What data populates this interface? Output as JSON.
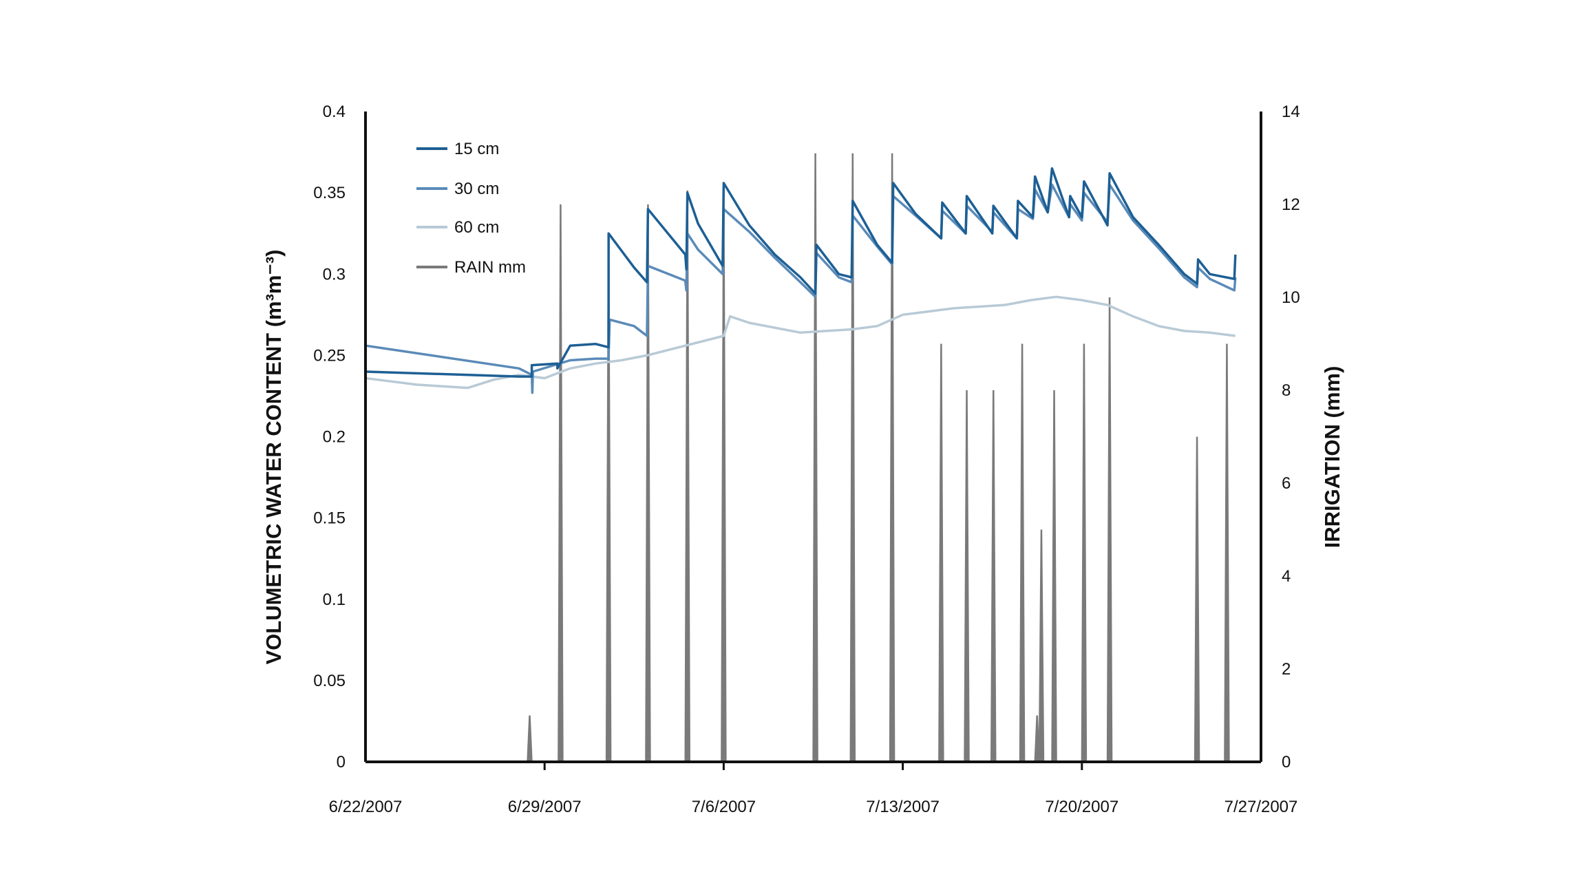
{
  "chart_data": {
    "type": "line",
    "ylabel": "VOLUMETRIC WATER CONTENT (m³m⁻³)",
    "y2label": "IRRIGATION (mm)",
    "ylim": [
      0,
      0.4
    ],
    "y2lim": [
      0,
      14
    ],
    "xlim": [
      "6/22/2007",
      "7/27/2007"
    ],
    "y_ticks": [
      "0",
      "0.05",
      "0.1",
      "0.15",
      "0.2",
      "0.25",
      "0.3",
      "0.35",
      "0.4"
    ],
    "y2_ticks": [
      "0",
      "2",
      "4",
      "6",
      "8",
      "10",
      "12",
      "14"
    ],
    "x_ticks": [
      "6/22/2007",
      "6/29/2007",
      "7/6/2007",
      "7/13/2007",
      "7/20/2007",
      "7/27/2007"
    ],
    "legend_position": "top-left",
    "grid": false,
    "colors": {
      "15 cm": "#1d5f94",
      "30 cm": "#5a8ab8",
      "60 cm": "#b8cad6",
      "RAIN mm": "#7a7a7a"
    },
    "series": [
      {
        "name": "15 cm",
        "axis": "left",
        "points": [
          [
            "6/22/2007",
            0.24
          ],
          [
            "6/28/2007",
            0.237
          ],
          [
            "6/28/2007 12:00",
            0.237
          ],
          [
            "6/28/2007 12:01",
            0.244
          ],
          [
            "6/29/2007 12:00",
            0.245
          ],
          [
            "6/29/2007 12:01",
            0.242
          ],
          [
            "6/30/2007",
            0.256
          ],
          [
            "7/1/2007",
            0.257
          ],
          [
            "7/1/2007 12:00",
            0.255
          ],
          [
            "7/1/2007 12:01",
            0.325
          ],
          [
            "7/2/2007 12:00",
            0.304
          ],
          [
            "7/3/2007",
            0.295
          ],
          [
            "7/3/2007 01:00",
            0.34
          ],
          [
            "7/4/2007 12:00",
            0.312
          ],
          [
            "7/4/2007 13:00",
            0.303
          ],
          [
            "7/4/2007 14:00",
            0.35
          ],
          [
            "7/5/2007",
            0.331
          ],
          [
            "7/5/2007 23:00",
            0.305
          ],
          [
            "7/6/2007",
            0.356
          ],
          [
            "7/7/2007",
            0.33
          ],
          [
            "7/8/2007",
            0.312
          ],
          [
            "7/9/2007",
            0.298
          ],
          [
            "7/9/2007 14:00",
            0.288
          ],
          [
            "7/9/2007 15:00",
            0.318
          ],
          [
            "7/10/2007 12:00",
            0.3
          ],
          [
            "7/11/2007",
            0.298
          ],
          [
            "7/11/2007 01:00",
            0.345
          ],
          [
            "7/12/2007",
            0.318
          ],
          [
            "7/12/2007 14:00",
            0.307
          ],
          [
            "7/12/2007 15:00",
            0.356
          ],
          [
            "7/13/2007 12:00",
            0.337
          ],
          [
            "7/14/2007 12:00",
            0.322
          ],
          [
            "7/14/2007 13:00",
            0.344
          ],
          [
            "7/15/2007 11:00",
            0.325
          ],
          [
            "7/15/2007 12:00",
            0.348
          ],
          [
            "7/16/2007 12:00",
            0.325
          ],
          [
            "7/16/2007 13:00",
            0.342
          ],
          [
            "7/17/2007 11:00",
            0.322
          ],
          [
            "7/17/2007 12:00",
            0.345
          ],
          [
            "7/18/2007 02:00",
            0.335
          ],
          [
            "7/18/2007 04:00",
            0.36
          ],
          [
            "7/18/2007 16:00",
            0.338
          ],
          [
            "7/18/2007 20:00",
            0.365
          ],
          [
            "7/19/2007 12:00",
            0.335
          ],
          [
            "7/19/2007 13:00",
            0.348
          ],
          [
            "7/20/2007",
            0.335
          ],
          [
            "7/20/2007 02:00",
            0.357
          ],
          [
            "7/21/2007",
            0.33
          ],
          [
            "7/21/2007 02:00",
            0.362
          ],
          [
            "7/22/2007",
            0.335
          ],
          [
            "7/23/2007",
            0.318
          ],
          [
            "7/24/2007",
            0.3
          ],
          [
            "7/24/2007 12:00",
            0.294
          ],
          [
            "7/24/2007 13:00",
            0.309
          ],
          [
            "7/25/2007",
            0.3
          ],
          [
            "7/25/2007 23:00",
            0.297
          ],
          [
            "7/26/2007",
            0.312
          ]
        ]
      },
      {
        "name": "30 cm",
        "axis": "left",
        "points": [
          [
            "6/22/2007",
            0.256
          ],
          [
            "6/28/2007",
            0.242
          ],
          [
            "6/28/2007 12:00",
            0.238
          ],
          [
            "6/28/2007 12:30",
            0.227
          ],
          [
            "6/28/2007 13:00",
            0.24
          ],
          [
            "6/30/2007",
            0.247
          ],
          [
            "7/1/2007",
            0.248
          ],
          [
            "7/1/2007 12:00",
            0.248
          ],
          [
            "7/1/2007 13:00",
            0.272
          ],
          [
            "7/2/2007 12:00",
            0.268
          ],
          [
            "7/3/2007",
            0.262
          ],
          [
            "7/3/2007 01:00",
            0.305
          ],
          [
            "7/4/2007 12:00",
            0.296
          ],
          [
            "7/4/2007 13:00",
            0.29
          ],
          [
            "7/4/2007 14:00",
            0.325
          ],
          [
            "7/5/2007",
            0.315
          ],
          [
            "7/5/2007 23:00",
            0.3
          ],
          [
            "7/6/2007",
            0.34
          ],
          [
            "7/7/2007",
            0.326
          ],
          [
            "7/8/2007",
            0.31
          ],
          [
            "7/9/2007",
            0.295
          ],
          [
            "7/9/2007 14:00",
            0.286
          ],
          [
            "7/9/2007 15:00",
            0.313
          ],
          [
            "7/10/2007 12:00",
            0.298
          ],
          [
            "7/11/2007",
            0.295
          ],
          [
            "7/11/2007 01:00",
            0.336
          ],
          [
            "7/12/2007",
            0.317
          ],
          [
            "7/12/2007 14:00",
            0.306
          ],
          [
            "7/12/2007 15:00",
            0.348
          ],
          [
            "7/13/2007 12:00",
            0.336
          ],
          [
            "7/14/2007 12:00",
            0.322
          ],
          [
            "7/14/2007 13:00",
            0.339
          ],
          [
            "7/15/2007 11:00",
            0.325
          ],
          [
            "7/15/2007 12:00",
            0.342
          ],
          [
            "7/16/2007 12:00",
            0.326
          ],
          [
            "7/16/2007 13:00",
            0.338
          ],
          [
            "7/17/2007 11:00",
            0.322
          ],
          [
            "7/17/2007 12:00",
            0.34
          ],
          [
            "7/18/2007 02:00",
            0.334
          ],
          [
            "7/18/2007 04:00",
            0.352
          ],
          [
            "7/18/2007 16:00",
            0.338
          ],
          [
            "7/18/2007 20:00",
            0.355
          ],
          [
            "7/19/2007 12:00",
            0.335
          ],
          [
            "7/19/2007 13:00",
            0.343
          ],
          [
            "7/20/2007",
            0.333
          ],
          [
            "7/20/2007 02:00",
            0.35
          ],
          [
            "7/21/2007",
            0.332
          ],
          [
            "7/21/2007 02:00",
            0.355
          ],
          [
            "7/22/2007",
            0.333
          ],
          [
            "7/23/2007",
            0.316
          ],
          [
            "7/24/2007",
            0.298
          ],
          [
            "7/24/2007 12:00",
            0.292
          ],
          [
            "7/24/2007 13:00",
            0.304
          ],
          [
            "7/25/2007",
            0.297
          ],
          [
            "7/25/2007 23:00",
            0.29
          ],
          [
            "7/26/2007",
            0.298
          ]
        ]
      },
      {
        "name": "60 cm",
        "axis": "left",
        "points": [
          [
            "6/22/2007",
            0.236
          ],
          [
            "6/23/2007",
            0.234
          ],
          [
            "6/24/2007",
            0.232
          ],
          [
            "6/25/2007",
            0.231
          ],
          [
            "6/26/2007",
            0.23
          ],
          [
            "6/27/2007",
            0.235
          ],
          [
            "6/28/2007",
            0.238
          ],
          [
            "6/29/2007",
            0.236
          ],
          [
            "6/30/2007",
            0.242
          ],
          [
            "7/1/2007",
            0.245
          ],
          [
            "7/2/2007",
            0.247
          ],
          [
            "7/3/2007",
            0.25
          ],
          [
            "7/4/2007",
            0.254
          ],
          [
            "7/5/2007",
            0.258
          ],
          [
            "7/6/2007",
            0.262
          ],
          [
            "7/6/2007 06:00",
            0.274
          ],
          [
            "7/7/2007",
            0.27
          ],
          [
            "7/8/2007",
            0.267
          ],
          [
            "7/9/2007",
            0.264
          ],
          [
            "7/10/2007",
            0.265
          ],
          [
            "7/11/2007",
            0.266
          ],
          [
            "7/12/2007",
            0.268
          ],
          [
            "7/13/2007",
            0.275
          ],
          [
            "7/14/2007",
            0.277
          ],
          [
            "7/15/2007",
            0.279
          ],
          [
            "7/16/2007",
            0.28
          ],
          [
            "7/17/2007",
            0.281
          ],
          [
            "7/18/2007",
            0.284
          ],
          [
            "7/19/2007",
            0.286
          ],
          [
            "7/20/2007",
            0.284
          ],
          [
            "7/21/2007",
            0.281
          ],
          [
            "7/22/2007",
            0.274
          ],
          [
            "7/23/2007",
            0.268
          ],
          [
            "7/24/2007",
            0.265
          ],
          [
            "7/25/2007",
            0.264
          ],
          [
            "7/26/2007",
            0.262
          ]
        ]
      },
      {
        "name": "RAIN mm",
        "axis": "right",
        "type": "spikes",
        "points": [
          [
            "6/28/2007 10:00",
            1
          ],
          [
            "6/29/2007 15:00",
            12
          ],
          [
            "7/1/2007 12:00",
            11.3
          ],
          [
            "7/3/2007 01:00",
            12
          ],
          [
            "7/4/2007 14:00",
            12.3
          ],
          [
            "7/6/2007",
            12.3
          ],
          [
            "7/9/2007 14:00",
            13.1
          ],
          [
            "7/11/2007 01:00",
            13.1
          ],
          [
            "7/12/2007 14:00",
            13.1
          ],
          [
            "7/14/2007 12:00",
            9
          ],
          [
            "7/15/2007 12:00",
            8
          ],
          [
            "7/16/2007 13:00",
            8
          ],
          [
            "7/17/2007 16:00",
            9
          ],
          [
            "7/18/2007 06:00",
            1
          ],
          [
            "7/18/2007 10:00",
            5
          ],
          [
            "7/18/2007 22:00",
            8
          ],
          [
            "7/20/2007 02:00",
            9
          ],
          [
            "7/21/2007 02:00",
            10
          ],
          [
            "7/24/2007 12:00",
            7
          ],
          [
            "7/25/2007 16:00",
            9
          ]
        ]
      }
    ]
  }
}
